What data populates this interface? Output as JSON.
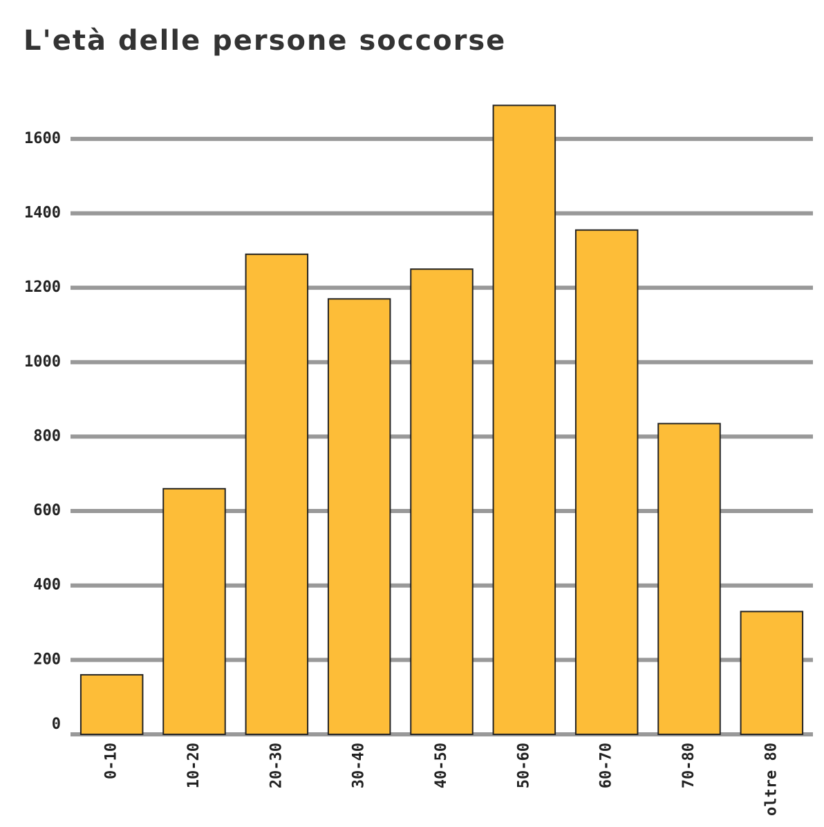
{
  "chart_data": {
    "type": "bar",
    "title": "L'età delle persone soccorse",
    "categories": [
      "0-10",
      "10-20",
      "20-30",
      "30-40",
      "40-50",
      "50-60",
      "60-70",
      "70-80",
      "oltre 80"
    ],
    "values": [
      160,
      660,
      1290,
      1170,
      1250,
      1690,
      1355,
      835,
      330
    ],
    "color": "#fdbd38",
    "ylim": [
      0,
      1700
    ],
    "yticks": [
      0,
      200,
      400,
      600,
      800,
      1000,
      1200,
      1400,
      1600
    ],
    "grid": true
  }
}
